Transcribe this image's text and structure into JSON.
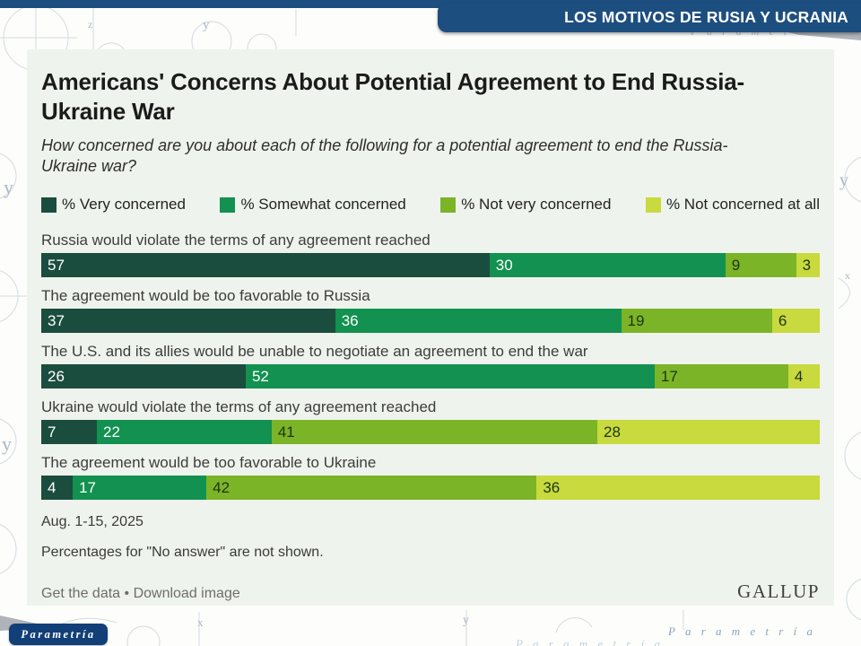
{
  "slide": {
    "banner_title": "LOS MOTIVOS DE RUSIA Y UCRANIA",
    "logo_text": "Parametría",
    "watermark_text": "P a r a m e t r í a"
  },
  "decor": {
    "letters": [
      {
        "char": "z"
      },
      {
        "char": "y"
      },
      {
        "char": "v"
      },
      {
        "char": "y"
      },
      {
        "char": "y"
      },
      {
        "char": "y"
      },
      {
        "char": "x"
      },
      {
        "char": "y"
      },
      {
        "char": "x"
      },
      {
        "char": "z"
      }
    ]
  },
  "chart": {
    "title": "Americans' Concerns About Potential Agreement to End Russia-Ukraine War",
    "subtitle": "How concerned are you about each of the following for a potential agreement to end the Russia-Ukraine war?",
    "footnote_date": "Aug. 1-15, 2025",
    "footnote_note": "Percentages for \"No answer\" are not shown.",
    "link_get_data": "Get the data",
    "link_separator": " • ",
    "link_download": "Download image",
    "source": "GALLUP"
  },
  "chart_data": {
    "type": "bar",
    "orientation": "horizontal-stacked",
    "xlim": [
      0,
      100
    ],
    "value_suffix": "%",
    "categories": [
      "Russia would violate the terms of any agreement reached",
      "The agreement would be too favorable to Russia",
      "The U.S. and its allies would be unable to negotiate an agreement to end the war",
      "Ukraine would violate the terms of any agreement reached",
      "The agreement would be too favorable to Ukraine"
    ],
    "series": [
      {
        "name": "% Very concerned",
        "color": "#1b4d3e",
        "text_color": "#ffffff",
        "values": [
          57,
          37,
          26,
          7,
          4
        ]
      },
      {
        "name": "% Somewhat concerned",
        "color": "#129150",
        "text_color": "#ffffff",
        "values": [
          30,
          36,
          52,
          22,
          17
        ]
      },
      {
        "name": "% Not very concerned",
        "color": "#7cb427",
        "text_color": "#1c3413",
        "values": [
          9,
          19,
          17,
          41,
          42
        ]
      },
      {
        "name": "% Not concerned at all",
        "color": "#c8da3e",
        "text_color": "#1c3413",
        "values": [
          3,
          6,
          4,
          28,
          36
        ]
      }
    ],
    "legend_position": "top"
  }
}
